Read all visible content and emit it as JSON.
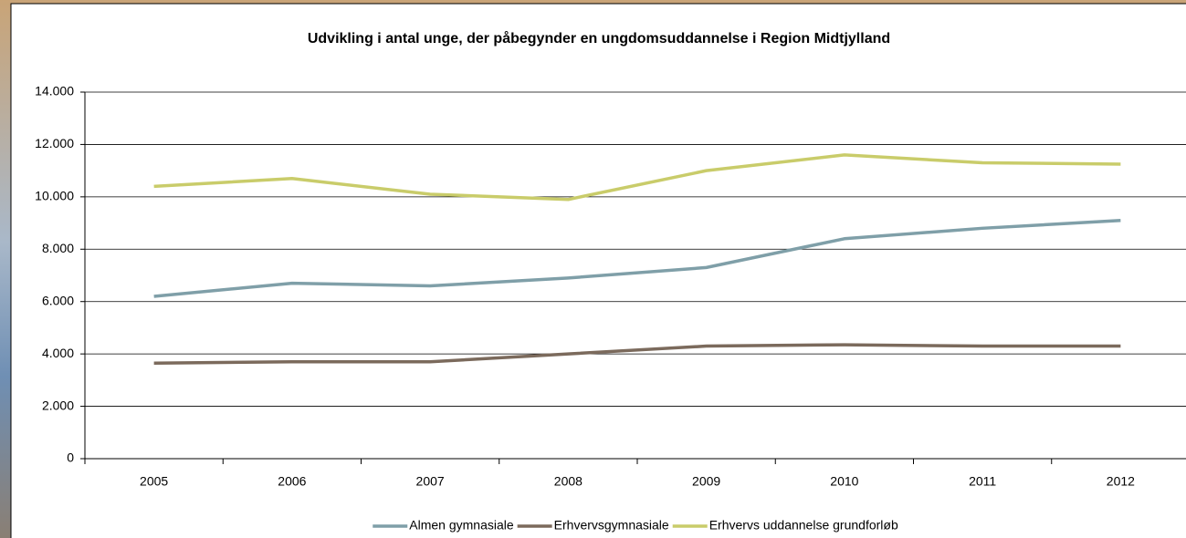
{
  "chart_data": {
    "type": "line",
    "title": "Udvikling i antal unge, der påbegynder en ungdomsuddannelse i Region Midtjylland",
    "categories": [
      "2005",
      "2006",
      "2007",
      "2008",
      "2009",
      "2010",
      "2011",
      "2012"
    ],
    "series": [
      {
        "name": "Almen gymnasiale",
        "color": "#7f9fa8",
        "values": [
          6200,
          6700,
          6600,
          6900,
          7300,
          8400,
          8800,
          9100
        ]
      },
      {
        "name": "Erhvervsgymnasiale",
        "color": "#7b6a5c",
        "values": [
          3650,
          3700,
          3700,
          4000,
          4300,
          4350,
          4300,
          4300
        ]
      },
      {
        "name": "Erhvervs uddannelse grundforløb",
        "color": "#c9cc6a",
        "values": [
          10400,
          10700,
          10100,
          9900,
          11000,
          11600,
          11300,
          11250
        ]
      }
    ],
    "ylim": [
      0,
      14000
    ],
    "yticks": [
      0,
      {
        "value": 2000,
        "label": "2.000"
      },
      {
        "value": 4000,
        "label": "4.000"
      },
      {
        "value": 6000,
        "label": "6.000"
      },
      {
        "value": 8000,
        "label": "8.000"
      },
      {
        "value": 10000,
        "label": "10.000"
      },
      {
        "value": 12000,
        "label": "12.000"
      },
      {
        "value": 14000,
        "label": "14.000"
      }
    ],
    "grid": true,
    "legend": "bottom"
  }
}
